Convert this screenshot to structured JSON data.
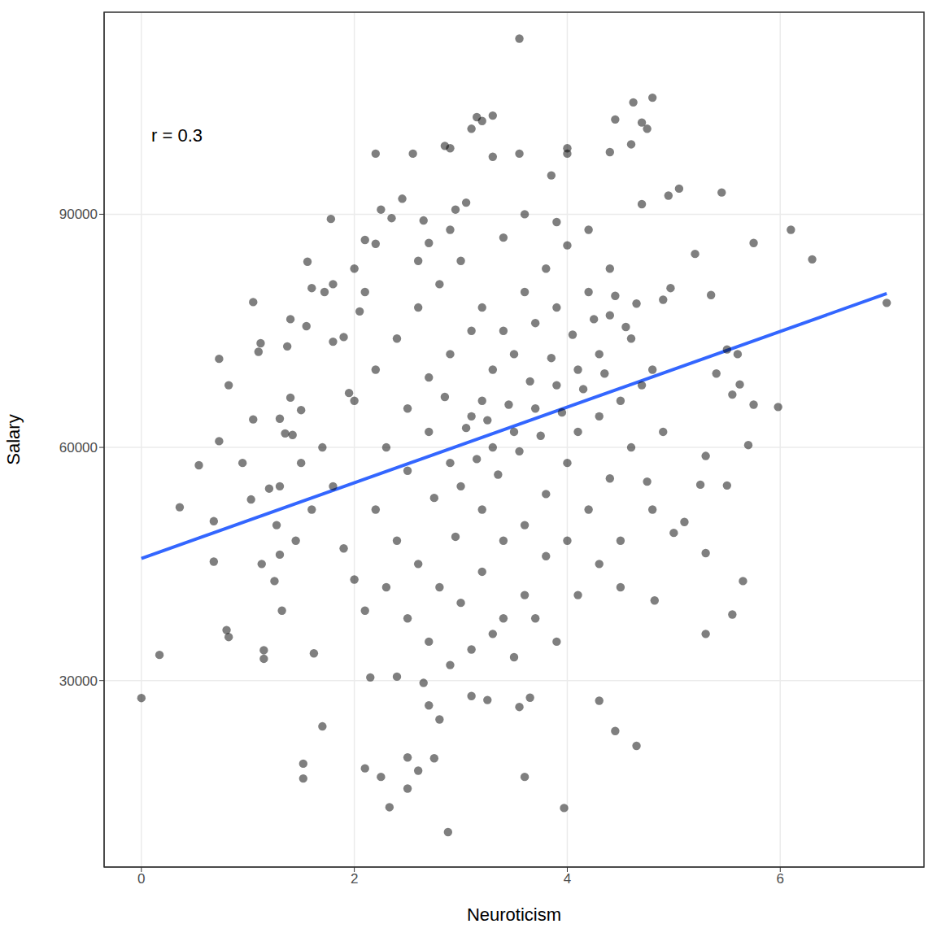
{
  "chart_data": {
    "type": "scatter",
    "xlabel": "Neuroticism",
    "ylabel": "Salary",
    "annotation": "r = 0.3",
    "color": "#000000",
    "marker": "circle",
    "grid": true,
    "xlim": [
      -0.35,
      7.35
    ],
    "xticks": [
      0,
      2,
      4,
      6
    ],
    "ylim": [
      6000,
      116000
    ],
    "yticks": [
      30000,
      60000,
      90000
    ],
    "fit": {
      "x": [
        0,
        7
      ],
      "values": [
        45700,
        79800
      ],
      "color": "#3366ff",
      "line_style": "solid"
    },
    "x": [
      0,
      0.17,
      0.36,
      0.54,
      0.68,
      0.68,
      0.73,
      0.73,
      0.8,
      0.82,
      0.82,
      0.95,
      1.03,
      1.05,
      1.05,
      1.1,
      1.12,
      1.13,
      1.15,
      1.15,
      1.2,
      1.25,
      1.27,
      1.3,
      1.3,
      1.32,
      1.35,
      1.37,
      1.4,
      1.4,
      1.42,
      1.45,
      1.5,
      1.52,
      1.52,
      1.55,
      1.56,
      1.6,
      1.62,
      1.7,
      1.72,
      1.78,
      1.8,
      1.8,
      1.9,
      1.95,
      2,
      2.05,
      2.1,
      2.2,
      2.2,
      2.25,
      2.35,
      2.45,
      2.55,
      2.6,
      2.65,
      2.7,
      2.85,
      2.9,
      2.95,
      3.05,
      3.1,
      3.15,
      3.2,
      3.3,
      3.3,
      3.55,
      3.55,
      3.85,
      4,
      4,
      4.45,
      4.4,
      4.6,
      4.62,
      4.7,
      4.75,
      4.8,
      4.7,
      4.95,
      5.05,
      5.45,
      5.75,
      6.1,
      6.3,
      7,
      5.98,
      5.75,
      5.7,
      5.62,
      5.6,
      5.55,
      5.5,
      5.65,
      5.55,
      5.5,
      5.3,
      5.3,
      5.25,
      5.3,
      5.4,
      5.35,
      5.2,
      5,
      5.1,
      4.97,
      4.9,
      4.82,
      4.8,
      4.75,
      4.5,
      4.45,
      4.65,
      4.3,
      3.97,
      3.6,
      2.88,
      2.33,
      2.5,
      2.6,
      2.25,
      2.1,
      2.5,
      2.75,
      3.1,
      3.25,
      3.65,
      3.55,
      2.7,
      2.8,
      2.65,
      2.4,
      2.15,
      2.3,
      2.5,
      2.7,
      2.9,
      3.1,
      3.2,
      3.3,
      3.5,
      3.7,
      3.9,
      4.1,
      4.3,
      3,
      3.2,
      3.4,
      3.6,
      3.8,
      4,
      2.2,
      2.4,
      2.6,
      2.8,
      3,
      3.2,
      3.4,
      3.6,
      3.8,
      4,
      4.2,
      4.4,
      2,
      2.2,
      2.4,
      2.6,
      2.8,
      3,
      3.2,
      3.4,
      3.6,
      3.8,
      4,
      4.2,
      4.4,
      4.6,
      4.8,
      1.8,
      1.9,
      2,
      2.1,
      1.7,
      1.6,
      3.3,
      3.5,
      3.7,
      3.9,
      4.1,
      4.3,
      4.5,
      4.7,
      4.9,
      2.5,
      2.7,
      2.9,
      3.1,
      2.3,
      2.5,
      2.7,
      2.9,
      3.1,
      3.3,
      3.5,
      3.7,
      3.9,
      4.1,
      4.3,
      4.5,
      4.6,
      4.4,
      4.2,
      3.9,
      3.4,
      3.6,
      2.9,
      2.1,
      1.5,
      1.3,
      3.05,
      3.15,
      3.25,
      3.35,
      3.45,
      3.55,
      3.65,
      3.75,
      3.85,
      3.95,
      4.05,
      4.15,
      4.25,
      4.35,
      4.45,
      4.55,
      4.65,
      2.85,
      2.75,
      2.95
    ],
    "values": [
      27750,
      33300,
      52300,
      57700,
      45300,
      50500,
      60800,
      71400,
      36500,
      35600,
      68000,
      58000,
      53300,
      63600,
      78700,
      72300,
      73400,
      45000,
      33900,
      32800,
      54700,
      42800,
      50000,
      63700,
      46200,
      39000,
      61800,
      73000,
      76500,
      66400,
      61600,
      48000,
      64800,
      19300,
      17400,
      75600,
      83900,
      80500,
      33500,
      24100,
      80000,
      89400,
      81000,
      73600,
      74200,
      67000,
      83000,
      77500,
      86700,
      86200,
      97800,
      90600,
      89500,
      92000,
      97800,
      84000,
      89200,
      86300,
      98800,
      98500,
      90600,
      91500,
      101000,
      102500,
      102000,
      102700,
      97400,
      97800,
      112600,
      95000,
      98500,
      97800,
      102200,
      98000,
      99000,
      104400,
      101800,
      101000,
      105000,
      91300,
      92400,
      93300,
      92800,
      86300,
      88000,
      84200,
      78600,
      65200,
      65500,
      60300,
      68100,
      72000,
      66800,
      72600,
      42800,
      38500,
      55100,
      46400,
      36000,
      55200,
      58900,
      69500,
      79600,
      84900,
      49000,
      50400,
      80500,
      79000,
      40300,
      52000,
      55600,
      42000,
      23500,
      21600,
      27400,
      13600,
      17600,
      10500,
      13700,
      16100,
      18400,
      17600,
      18700,
      20100,
      20000,
      28000,
      27500,
      27800,
      26600,
      26800,
      25000,
      29700,
      30500,
      30400,
      60000,
      57000,
      62000,
      58000,
      64000,
      66000,
      60000,
      62000,
      65000,
      68000,
      70000,
      72000,
      55000,
      52000,
      48000,
      50000,
      54000,
      58000,
      52000,
      48000,
      45000,
      42000,
      40000,
      44000,
      38000,
      41000,
      46000,
      48000,
      52000,
      56000,
      66000,
      70000,
      74000,
      78000,
      81000,
      84000,
      78000,
      75000,
      80000,
      83000,
      86000,
      80000,
      77000,
      74000,
      70000,
      55000,
      47000,
      43000,
      39000,
      60000,
      52000,
      70000,
      72000,
      76000,
      78000,
      62000,
      64000,
      66000,
      68000,
      62000,
      65000,
      69000,
      72000,
      75000,
      42000,
      38000,
      35000,
      32000,
      34000,
      36000,
      33000,
      38000,
      35000,
      41000,
      45000,
      48000,
      60000,
      83000,
      88000,
      89000,
      87000,
      90000,
      88000,
      80000,
      58000,
      55000,
      62500,
      58500,
      63500,
      56500,
      65500,
      59500,
      68500,
      61500,
      71500,
      64500,
      74500,
      67500,
      76500,
      69500,
      79500,
      75500,
      78500,
      66500,
      53500,
      48500
    ]
  }
}
